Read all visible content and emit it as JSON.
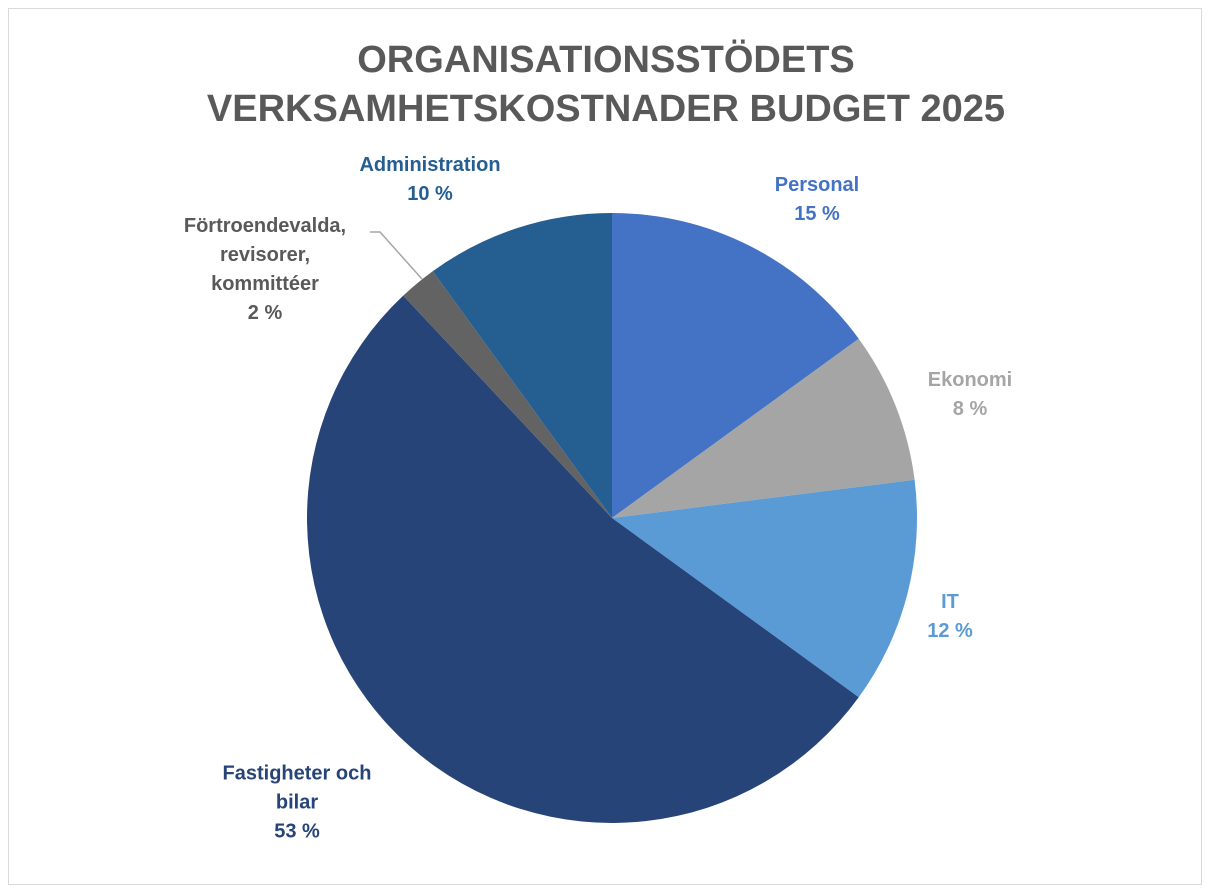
{
  "chart_data": {
    "type": "pie",
    "title": "ORGANISATIONSSTÖDETS VERKSAMHETSKOSTNADER BUDGET 2025",
    "categories": [
      "Personal",
      "Ekonomi",
      "IT",
      "Fastigheter och bilar",
      "Förtroendevalda, revisorer, kommittéer",
      "Administration"
    ],
    "values": [
      15,
      8,
      12,
      53,
      2,
      10
    ],
    "value_labels": [
      "15 %",
      "8 %",
      "12 %",
      "53 %",
      "2 %",
      "10 %"
    ],
    "colors": [
      "#4472c4",
      "#a5a5a5",
      "#5b9bd5",
      "#264478",
      "#636363",
      "#255e91"
    ]
  }
}
